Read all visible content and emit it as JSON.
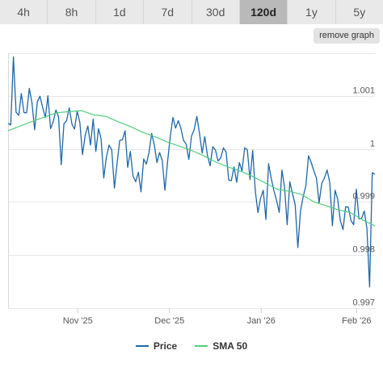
{
  "ranges": [
    {
      "label": "4h",
      "active": false
    },
    {
      "label": "8h",
      "active": false
    },
    {
      "label": "1d",
      "active": false
    },
    {
      "label": "7d",
      "active": false
    },
    {
      "label": "30d",
      "active": false
    },
    {
      "label": "120d",
      "active": true
    },
    {
      "label": "1y",
      "active": false
    },
    {
      "label": "5y",
      "active": false
    }
  ],
  "remove_graph_label": "remove graph",
  "colors": {
    "price": "#2067a8",
    "sma": "#4fcf7a",
    "grid": "#e6e6e6"
  },
  "chart_data": {
    "type": "line",
    "x_ticks": [
      "Nov '25",
      "Dec '25",
      "Jan '26",
      "Feb '26"
    ],
    "y_ticks": [
      "1.001",
      "1",
      "0.999",
      "0.998",
      "0.997"
    ],
    "ylim": [
      0.997,
      1.0018
    ],
    "grid": true,
    "legend_position": "bottom",
    "series": [
      {
        "name": "Price",
        "values": [
          1.00048,
          1.00045,
          1.00173,
          1.00069,
          1.00063,
          1.00104,
          1.00068,
          1.00068,
          1.00114,
          1.00086,
          1.00036,
          1.00089,
          1.00099,
          1.00078,
          1.00059,
          1.001,
          1.00038,
          1.00051,
          1.00073,
          1.0006,
          0.9997,
          1.00047,
          1.00053,
          1.00077,
          1.00047,
          1.00037,
          1.00071,
          1.0005,
          0.99989,
          1.00025,
          1.00043,
          1.00007,
          1.00056,
          0.99995,
          1.00038,
          1.00019,
          0.99945,
          0.99985,
          1.00007,
          0.99998,
          0.99926,
          0.99973,
          1.00016,
          1.00017,
          1.00034,
          0.99965,
          0.99995,
          0.99949,
          0.99938,
          0.99956,
          0.99919,
          0.99981,
          0.99971,
          0.99993,
          1.00029,
          1.00008,
          0.99974,
          0.99993,
          0.99978,
          0.99922,
          0.99976,
          1.00023,
          1.00059,
          1.00039,
          1.00053,
          1.00039,
          1.00016,
          1.00009,
          0.9998,
          1.00024,
          1.00036,
          1.00061,
          1.00029,
          0.99992,
          1.00023,
          0.99988,
          0.99968,
          1.00004,
          0.99998,
          0.99977,
          0.99983,
          1.00002,
          0.99994,
          0.99941,
          0.9994,
          0.99966,
          0.99937,
          0.99974,
          0.99958,
          1.00002,
          0.99998,
          0.99942,
          0.99997,
          0.9992,
          0.9988,
          0.99907,
          0.99922,
          0.99867,
          0.99972,
          0.99944,
          0.99921,
          0.99903,
          0.9988,
          0.9996,
          0.99928,
          0.99857,
          0.99938,
          0.99916,
          0.99895,
          0.99814,
          0.99883,
          0.9991,
          0.9993,
          0.99987,
          0.99975,
          0.99959,
          0.99945,
          0.99898,
          0.99935,
          0.99945,
          0.9996,
          0.99937,
          0.99855,
          0.99922,
          0.99905,
          0.99865,
          0.99848,
          0.99891,
          0.9989,
          0.99865,
          0.99857,
          0.99924,
          0.99868,
          0.99869,
          0.99883,
          0.9985,
          0.9974,
          0.99955,
          0.99952
        ]
      },
      {
        "name": "SMA 50",
        "values": [
          1.00034,
          1.00043,
          1.00052,
          1.0006,
          1.00068,
          1.0007,
          1.00072,
          1.00064,
          1.00061,
          1.00051,
          1.00042,
          1.00031,
          1.00023,
          1.00013,
          1.00005,
          0.99997,
          0.99987,
          0.99975,
          0.99966,
          0.99958,
          0.99948,
          0.99936,
          0.99924,
          0.9992,
          0.99914,
          0.999,
          0.99893,
          0.99885,
          0.9988,
          0.99866,
          0.99855
        ]
      }
    ]
  },
  "legend": [
    {
      "label": "Price"
    },
    {
      "label": "SMA 50"
    }
  ]
}
